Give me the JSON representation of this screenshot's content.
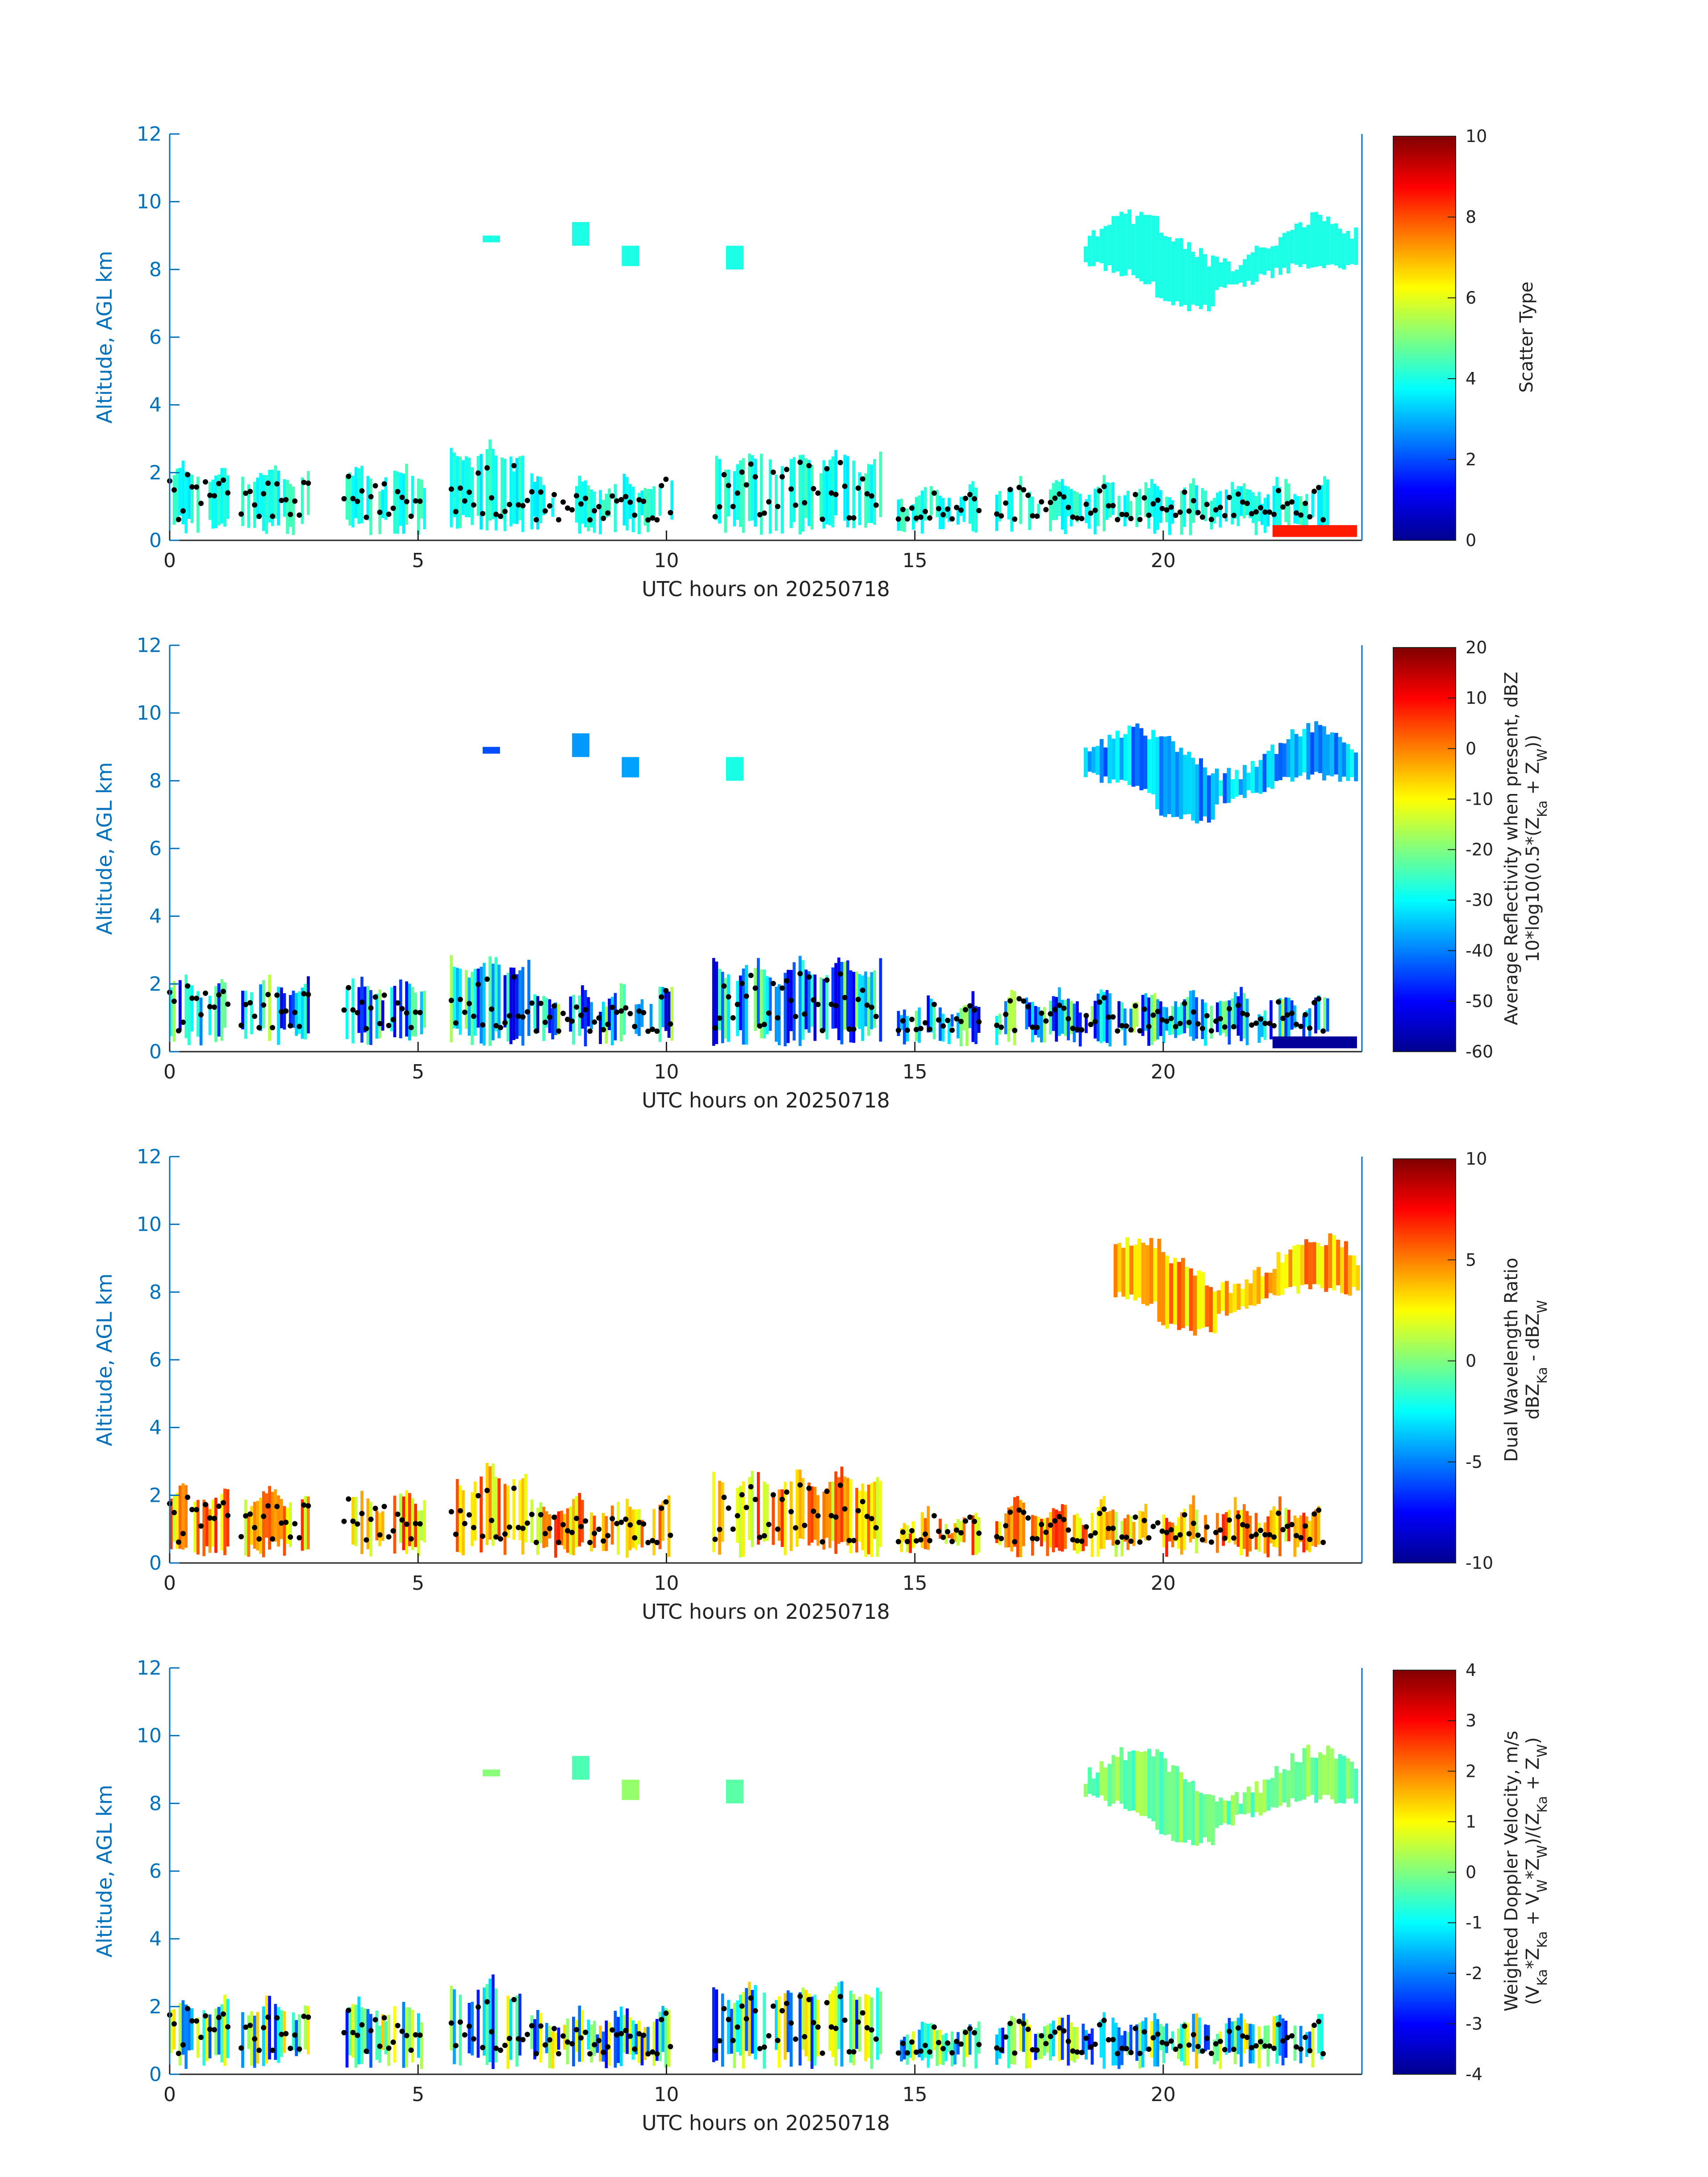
{
  "figure": {
    "background": "#ffffff",
    "axis_color": "#0072BD",
    "marker_color": "#000000"
  },
  "chart_data": [
    {
      "type": "heatmap",
      "xlabel": "UTC hours on 20250718",
      "ylabel": "Altitude, AGL km",
      "xlim": [
        0,
        24
      ],
      "ylim": [
        0,
        12
      ],
      "xticks": [
        0,
        5,
        10,
        15,
        20
      ],
      "yticks": [
        0,
        2,
        4,
        6,
        8,
        10,
        12
      ],
      "colormap": "jet",
      "colorbar": {
        "label_lines": [
          "Scatter Type"
        ],
        "clim": [
          0,
          10
        ],
        "ticks": [
          0,
          2,
          4,
          6,
          8,
          10
        ]
      },
      "dominant_value": 4,
      "cirrus_base_value": 4,
      "low_cloud_values": [
        3.5,
        4.5
      ],
      "surface_clutter_value": 8.5
    },
    {
      "type": "heatmap",
      "xlabel": "UTC hours on 20250718",
      "ylabel": "Altitude, AGL km",
      "xlim": [
        0,
        24
      ],
      "ylim": [
        0,
        12
      ],
      "xticks": [
        0,
        5,
        10,
        15,
        20
      ],
      "yticks": [
        0,
        2,
        4,
        6,
        8,
        10,
        12
      ],
      "colormap": "jet",
      "colorbar": {
        "label_lines": [
          "Average Reflectivity when present, dBZ",
          "10*log10(0.5*(Z_Ka + Z_W))"
        ],
        "clim": [
          -60,
          20
        ],
        "ticks": [
          -60,
          -50,
          -40,
          -30,
          -20,
          -10,
          0,
          10,
          20
        ]
      },
      "cirrus_range": [
        -45,
        -28
      ],
      "low_cloud_range": [
        -55,
        -15
      ],
      "surface_clutter_value": -58
    },
    {
      "type": "heatmap",
      "xlabel": "UTC hours on 20250718",
      "ylabel": "Altitude, AGL km",
      "xlim": [
        0,
        24
      ],
      "ylim": [
        0,
        12
      ],
      "xticks": [
        0,
        5,
        10,
        15,
        20
      ],
      "yticks": [
        0,
        2,
        4,
        6,
        8,
        10,
        12
      ],
      "colormap": "jet",
      "colorbar": {
        "label_lines": [
          "Dual Wavelength Ratio",
          "dBZ_Ka - dBZ_W"
        ],
        "clim": [
          -10,
          10
        ],
        "ticks": [
          -10,
          -5,
          0,
          5,
          10
        ]
      },
      "cirrus_range": [
        2,
        6
      ],
      "low_cloud_range": [
        1,
        7
      ]
    },
    {
      "type": "heatmap",
      "xlabel": "UTC hours on 20250718",
      "ylabel": "Altitude, AGL km",
      "xlim": [
        0,
        24
      ],
      "ylim": [
        0,
        12
      ],
      "xticks": [
        0,
        5,
        10,
        15,
        20
      ],
      "yticks": [
        0,
        2,
        4,
        6,
        8,
        10,
        12
      ],
      "colormap": "jet",
      "colorbar": {
        "label_lines": [
          "Weighted Doppler Velocity, m/s",
          "(V_Ka*Z_Ka + V_W*Z_W)/(Z_Ka + Z_W)"
        ],
        "clim": [
          -4,
          4
        ],
        "ticks": [
          -4,
          -3,
          -2,
          -1,
          0,
          1,
          2,
          3,
          4
        ]
      },
      "cirrus_range": [
        -0.6,
        0.4
      ],
      "low_cloud_range": [
        -3,
        1.5
      ]
    }
  ]
}
